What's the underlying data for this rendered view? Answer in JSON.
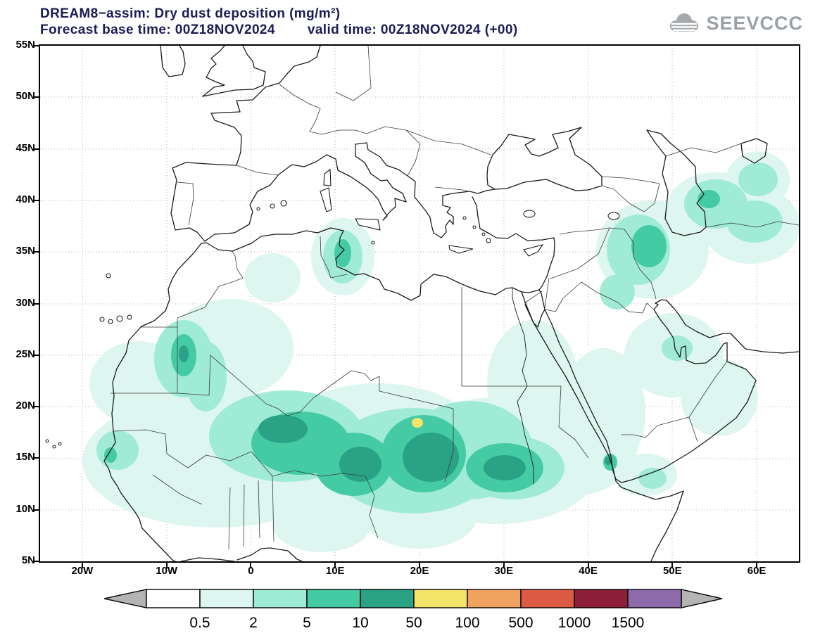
{
  "header": {
    "title": "DREAM8−assim: Dry dust deposition (mg/m²)",
    "line2_left": "Forecast base time: 00Z18NOV2024",
    "line2_right": "valid time: 00Z18NOV2024 (+00)"
  },
  "logo": {
    "text": "SEEVCCC"
  },
  "axes": {
    "y_ticks": [
      {
        "label": "55N",
        "lat": 55
      },
      {
        "label": "50N",
        "lat": 50
      },
      {
        "label": "45N",
        "lat": 45
      },
      {
        "label": "40N",
        "lat": 40
      },
      {
        "label": "35N",
        "lat": 35
      },
      {
        "label": "30N",
        "lat": 30
      },
      {
        "label": "25N",
        "lat": 25
      },
      {
        "label": "20N",
        "lat": 20
      },
      {
        "label": "15N",
        "lat": 15
      },
      {
        "label": "10N",
        "lat": 10
      },
      {
        "label": "5N",
        "lat": 5
      }
    ],
    "x_ticks": [
      {
        "label": "20W",
        "lon": -20
      },
      {
        "label": "10W",
        "lon": -10
      },
      {
        "label": "0",
        "lon": 0
      },
      {
        "label": "10E",
        "lon": 10
      },
      {
        "label": "20E",
        "lon": 20
      },
      {
        "label": "30E",
        "lon": 30
      },
      {
        "label": "40E",
        "lon": 40
      },
      {
        "label": "50E",
        "lon": 50
      },
      {
        "label": "60E",
        "lon": 60
      }
    ]
  },
  "legend": {
    "labels": [
      "0.5",
      "2",
      "5",
      "10",
      "50",
      "100",
      "500",
      "1000",
      "1500"
    ],
    "bin_colors": [
      "#ffffff",
      "#ddf6ef",
      "#a0ebd5",
      "#45cba4",
      "#2aa285",
      "#f4e46a",
      "#f0a35f",
      "#dd5b45",
      "#8e1f38",
      "#8d6bab"
    ],
    "arrow_color": "#b4b4b4"
  },
  "colors": {
    "title_text": "#1b1b55",
    "logo_gray": "#9aa0a6",
    "coastline": "#1a1a1a",
    "grid": "#b0b0b0"
  },
  "chart_data": {
    "type": "heatmap",
    "subtype": "filled-contour-geographic-map",
    "title": "DREAM8−assim: Dry dust deposition (mg/m²)",
    "variable": "Dry dust deposition",
    "units": "mg/m²",
    "model": "DREAM8-assim",
    "forecast_base_time": "00Z18NOV2024",
    "valid_time": "00Z18NOV2024 (+00)",
    "lead_hours": 0,
    "lon_range": [
      -25,
      65
    ],
    "lat_range": [
      5,
      55
    ],
    "lat_gridline_step_deg": 5,
    "lon_gridline_step_deg": 10,
    "contour_levels_mg_m2": [
      0.5,
      2,
      5,
      10,
      50,
      100,
      500,
      1000,
      1500
    ],
    "legend_position": "bottom",
    "grid": "dotted",
    "regions_depicted": [
      {
        "region": "Sahel band from Senegal to Sudan",
        "lon": [
          -18,
          35
        ],
        "lat": [
          9,
          22
        ],
        "value_range": "0.5–50"
      },
      {
        "region": "Mali/Niger core (0–8E, 14–19N)",
        "value_range": "10–50"
      },
      {
        "region": "Nigeria/Chad core (8–23E, 12–18N)",
        "value_range": "10–50"
      },
      {
        "region": "local maximum near 19E, 18N (Chad)",
        "value_range": "50–100"
      },
      {
        "region": "Sudan patch (28–32E, 12–15N)",
        "value_range": "10–50"
      },
      {
        "region": "Western Sahara / N Mauritania spot (−9W, 24–27N)",
        "value_range": "5–50"
      },
      {
        "region": "Tunisia / Strait of Sicily (8–11E, 32–37N)",
        "value_range": "2–10"
      },
      {
        "region": "Iraq / W Iran (41–50E, 30–38N)",
        "value_range": "0.5–10"
      },
      {
        "region": "S Caspian and east of Caspian (48–62E, 36–45N)",
        "value_range": "0.5–5"
      },
      {
        "region": "Arabian Peninsula scattered patches",
        "value_range": "0.5–5"
      },
      {
        "region": "southern Red Sea / Yemen coast",
        "value_range": "2–10"
      }
    ]
  }
}
